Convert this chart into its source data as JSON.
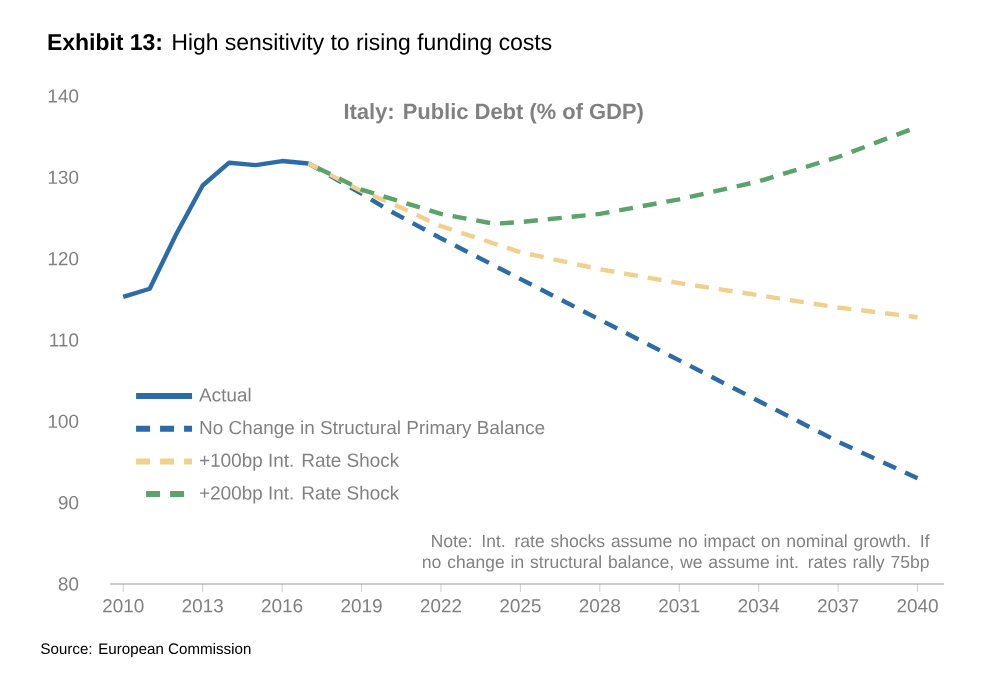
{
  "chart_data": {
    "type": "line",
    "title": "**Exhibit 13:** High sensitivity to rising funding costs",
    "subtitle": "Italy: Public Debt (% of GDP)",
    "annotations": [
      "Note: Int. rate shocks assume no impact on nominal growth. If no change in structural balance, we assume int. rates rally 75bp",
      "Source: European Commission"
    ],
    "series": [
      {
        "name": "Actual",
        "color": "#2b6ca8",
        "line_style": "solid",
        "x": [
          2010,
          2011,
          2012,
          2013,
          2014,
          2015,
          2016,
          2017
        ],
        "values": [
          115.3,
          116.3,
          123,
          129,
          131.8,
          131.5,
          132,
          131.7
        ]
      },
      {
        "name": "No Change in Structural Primary Balance",
        "color": "#2b6ca8",
        "line_style": "dashed",
        "x": [
          2017,
          2019,
          2020,
          2022,
          2025,
          2028,
          2031,
          2034,
          2037,
          2040
        ],
        "values": [
          131.7,
          128,
          126,
          122.5,
          117.5,
          112.5,
          107.5,
          102.5,
          97.5,
          93
        ]
      },
      {
        "name": "+100bp Int. Rate Shock",
        "color": "#f0d08c",
        "line_style": "dashed",
        "x": [
          2017,
          2019,
          2020,
          2022,
          2025,
          2028,
          2031,
          2034,
          2037,
          2040
        ],
        "values": [
          131.7,
          128.3,
          127,
          124,
          120.8,
          118.7,
          117,
          115.5,
          114,
          112.8
        ]
      },
      {
        "name": "+200bp Int. Rate Shock",
        "color": "#5aa469",
        "line_style": "dashed",
        "x": [
          2017,
          2019,
          2020,
          2022,
          2024,
          2025,
          2028,
          2031,
          2034,
          2037,
          2040
        ],
        "values": [
          131.7,
          128.5,
          127.5,
          125.5,
          124.3,
          124.5,
          125.5,
          127.3,
          129.5,
          132.5,
          136.2
        ]
      }
    ],
    "xlim": [
      2009.5,
      2041
    ],
    "ylim": [
      80,
      140
    ],
    "xticks": [
      2010,
      2013,
      2016,
      2019,
      2022,
      2025,
      2028,
      2031,
      2034,
      2037,
      2040
    ],
    "yticks": [
      80,
      90,
      100,
      110,
      120,
      130,
      140
    ],
    "legend": "bottom left"
  }
}
